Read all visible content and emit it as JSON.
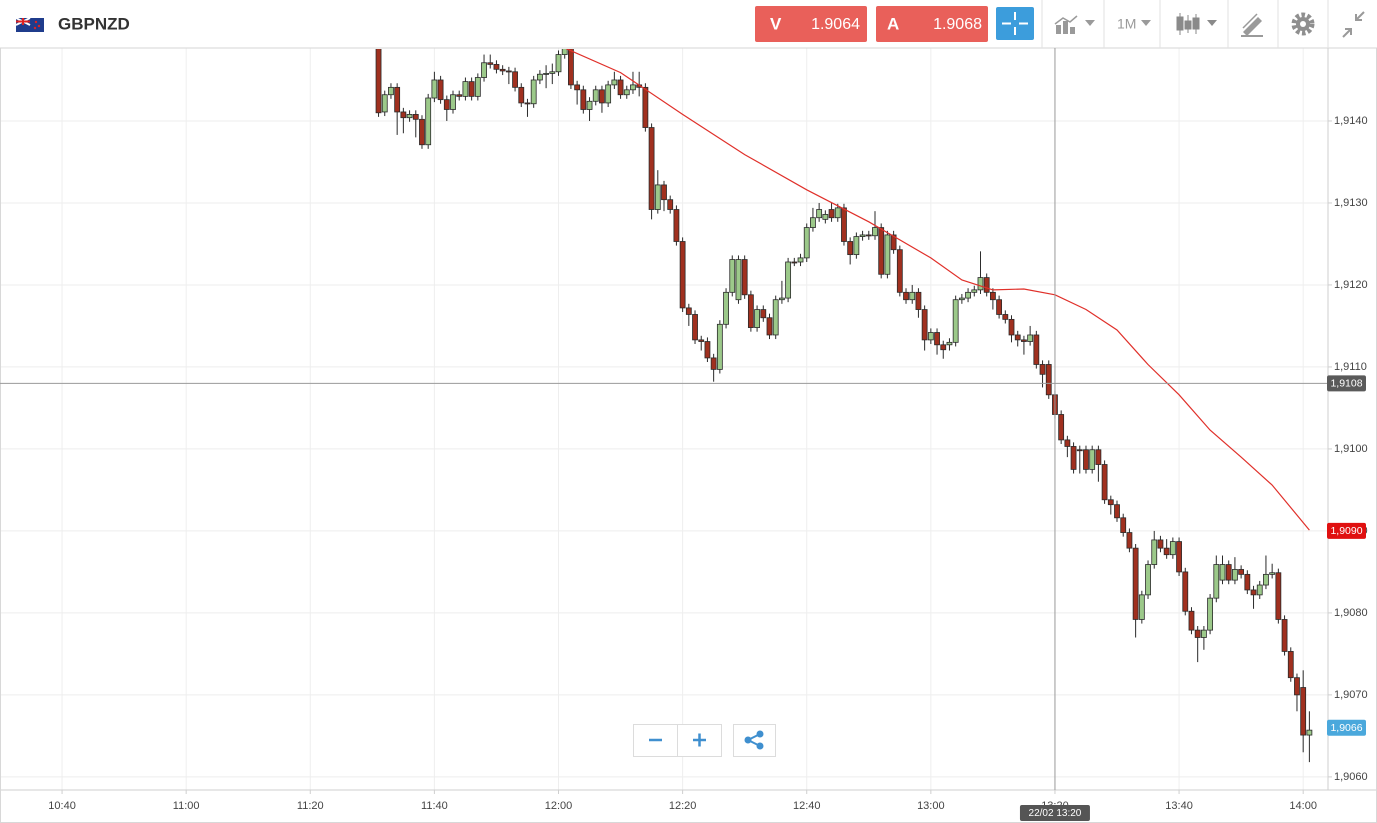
{
  "header": {
    "symbol": "GBPNZD",
    "sell": {
      "label": "V",
      "price": 1.9064
    },
    "buy": {
      "label": "A",
      "price": 1.9068
    },
    "timeframe": "1M"
  },
  "chart_data": {
    "type": "candlestick",
    "x": [
      "11:31",
      "11:32",
      "11:33",
      "11:34",
      "11:35",
      "11:36",
      "11:37",
      "11:38",
      "11:39",
      "11:40",
      "11:41",
      "11:42",
      "11:43",
      "11:44",
      "11:45",
      "11:46",
      "11:47",
      "11:48",
      "11:49",
      "11:50",
      "11:51",
      "11:52",
      "11:53",
      "11:54",
      "11:55",
      "11:56",
      "11:57",
      "11:58",
      "11:59",
      "12:00",
      "12:01",
      "12:02",
      "12:03",
      "12:04",
      "12:05",
      "12:06",
      "12:07",
      "12:08",
      "12:09",
      "12:10",
      "12:11",
      "12:12",
      "12:13",
      "12:14",
      "12:15",
      "12:16",
      "12:17",
      "12:18",
      "12:19",
      "12:20",
      "12:21",
      "12:22",
      "12:23",
      "12:24",
      "12:25",
      "12:26",
      "12:27",
      "12:28",
      "12:29",
      "12:30",
      "12:31",
      "12:32",
      "12:33",
      "12:34",
      "12:35",
      "12:36",
      "12:37",
      "12:38",
      "12:39",
      "12:40",
      "12:41",
      "12:42",
      "12:43",
      "12:44",
      "12:45",
      "12:46",
      "12:47",
      "12:48",
      "12:49",
      "12:50",
      "12:51",
      "12:52",
      "12:53",
      "12:54",
      "12:55",
      "12:56",
      "12:57",
      "12:58",
      "12:59",
      "13:00",
      "13:01",
      "13:02",
      "13:03",
      "13:04",
      "13:05",
      "13:06",
      "13:07",
      "13:08",
      "13:09",
      "13:10",
      "13:11",
      "13:12",
      "13:13",
      "13:14",
      "13:15",
      "13:16",
      "13:17",
      "13:18",
      "13:19",
      "13:20",
      "13:21",
      "13:22",
      "13:23",
      "13:24",
      "13:25",
      "13:26",
      "13:27",
      "13:28",
      "13:29",
      "13:30",
      "13:31",
      "13:32",
      "13:33",
      "13:34",
      "13:35",
      "13:36",
      "13:37",
      "13:38",
      "13:39",
      "13:40",
      "13:41",
      "13:42",
      "13:43",
      "13:44",
      "13:45",
      "13:46",
      "13:47",
      "13:48",
      "13:49",
      "13:50",
      "13:51",
      "13:52",
      "13:53",
      "13:54",
      "13:55",
      "13:56",
      "13:57",
      "13:58",
      "13:59",
      "14:00",
      "14:01"
    ],
    "open": [
      1.91489,
      1.91411,
      1.91432,
      1.91441,
      1.91411,
      1.91404,
      1.91408,
      1.91402,
      1.91371,
      1.91428,
      1.9145,
      1.91426,
      1.91414,
      1.91432,
      1.9143,
      1.91448,
      1.9143,
      1.91453,
      1.91471,
      1.91469,
      1.91463,
      1.91461,
      1.9146,
      1.91441,
      1.91422,
      1.91421,
      1.9145,
      1.91457,
      1.91458,
      1.9146,
      1.91481,
      1.91489,
      1.91444,
      1.91438,
      1.91414,
      1.91424,
      1.91438,
      1.91422,
      1.91444,
      1.9145,
      1.91432,
      1.91438,
      1.91444,
      1.91441,
      1.91392,
      1.91292,
      1.91322,
      1.91304,
      1.91292,
      1.91253,
      1.91172,
      1.91164,
      1.91133,
      1.91131,
      1.91111,
      1.91097,
      1.91152,
      1.91191,
      1.91182,
      1.91231,
      1.91188,
      1.91148,
      1.9117,
      1.9116,
      1.91139,
      1.91182,
      1.91184,
      1.91228,
      1.91228,
      1.91233,
      1.9127,
      1.91282,
      1.9128,
      1.91292,
      1.91282,
      1.91294,
      1.91253,
      1.91237,
      1.91259,
      1.91261,
      1.9126,
      1.9127,
      1.91213,
      1.91261,
      1.91243,
      1.91191,
      1.91182,
      1.91191,
      1.9117,
      1.91133,
      1.91142,
      1.91127,
      1.91127,
      1.9113,
      1.91182,
      1.91184,
      1.91191,
      1.91194,
      1.91209,
      1.91191,
      1.91182,
      1.91164,
      1.91158,
      1.91139,
      1.91133,
      1.91131,
      1.91139,
      1.91103,
      1.91103,
      1.91066,
      1.91042,
      1.91011,
      1.91003,
      1.90999,
      1.90999,
      1.90975,
      1.90999,
      1.90981,
      1.90938,
      1.90932,
      1.90916,
      1.90898,
      1.90879,
      1.90792,
      1.90822,
      1.90859,
      1.90889,
      1.90879,
      1.90871,
      1.90887,
      1.9085,
      1.90802,
      1.90779,
      1.9077,
      1.90779,
      1.90818,
      1.9084,
      1.90859,
      1.9084,
      1.90853,
      1.90847,
      1.90828,
      1.90822,
      1.90834,
      1.90847,
      1.90849,
      1.90792,
      1.90753,
      1.90721,
      1.90709,
      1.90651
    ],
    "high": [
      1.91494,
      1.91437,
      1.91446,
      1.91446,
      1.91416,
      1.91413,
      1.91413,
      1.91407,
      1.91433,
      1.9146,
      1.91455,
      1.91431,
      1.91437,
      1.91437,
      1.91453,
      1.91453,
      1.91458,
      1.91481,
      1.91481,
      1.91474,
      1.91468,
      1.91466,
      1.91465,
      1.91446,
      1.91427,
      1.91455,
      1.91462,
      1.91468,
      1.9147,
      1.91486,
      1.91494,
      1.91494,
      1.91449,
      1.91443,
      1.91429,
      1.91443,
      1.91443,
      1.91449,
      1.9146,
      1.91455,
      1.91443,
      1.9146,
      1.9146,
      1.91446,
      1.91397,
      1.9134,
      1.91327,
      1.91309,
      1.91297,
      1.91258,
      1.91177,
      1.91169,
      1.91138,
      1.91136,
      1.91116,
      1.91157,
      1.91196,
      1.91236,
      1.91236,
      1.91236,
      1.91193,
      1.91175,
      1.91175,
      1.91165,
      1.91187,
      1.91205,
      1.91233,
      1.91233,
      1.91238,
      1.91275,
      1.91294,
      1.913,
      1.91291,
      1.913,
      1.91299,
      1.91299,
      1.91258,
      1.91264,
      1.91266,
      1.91266,
      1.9129,
      1.91275,
      1.91266,
      1.91266,
      1.91248,
      1.91196,
      1.912,
      1.91196,
      1.91175,
      1.91147,
      1.91147,
      1.91132,
      1.91135,
      1.91187,
      1.91189,
      1.91196,
      1.91199,
      1.91241,
      1.91214,
      1.91196,
      1.91187,
      1.91169,
      1.91163,
      1.91144,
      1.91138,
      1.9115,
      1.91144,
      1.91108,
      1.91108,
      1.91071,
      1.91047,
      1.91016,
      1.91008,
      1.91004,
      1.91004,
      1.91004,
      1.91004,
      1.90986,
      1.90943,
      1.90937,
      1.90921,
      1.90903,
      1.90884,
      1.90827,
      1.90864,
      1.909,
      1.90894,
      1.9089,
      1.90892,
      1.90892,
      1.90855,
      1.90807,
      1.90784,
      1.90784,
      1.90823,
      1.9087,
      1.9087,
      1.90864,
      1.90868,
      1.90858,
      1.90852,
      1.90833,
      1.90839,
      1.9087,
      1.9086,
      1.90854,
      1.90797,
      1.90758,
      1.90726,
      1.9073,
      1.9068
    ],
    "low": [
      1.91405,
      1.91406,
      1.91427,
      1.91383,
      1.91385,
      1.91399,
      1.9138,
      1.91366,
      1.91366,
      1.91423,
      1.91421,
      1.914,
      1.91409,
      1.91425,
      1.91425,
      1.91425,
      1.91425,
      1.91448,
      1.91464,
      1.91458,
      1.91456,
      1.91445,
      1.91436,
      1.91417,
      1.91405,
      1.91416,
      1.91445,
      1.9144,
      1.91445,
      1.91455,
      1.91476,
      1.91439,
      1.9142,
      1.91409,
      1.914,
      1.91419,
      1.9141,
      1.91417,
      1.91439,
      1.91427,
      1.91427,
      1.91433,
      1.9143,
      1.91387,
      1.9128,
      1.91287,
      1.9129,
      1.91287,
      1.91248,
      1.91167,
      1.9115,
      1.91128,
      1.9112,
      1.91106,
      1.91082,
      1.91092,
      1.91147,
      1.91186,
      1.91177,
      1.91183,
      1.91143,
      1.91143,
      1.91155,
      1.91134,
      1.91134,
      1.91177,
      1.91179,
      1.91223,
      1.91223,
      1.91228,
      1.91265,
      1.91277,
      1.91275,
      1.91277,
      1.91277,
      1.91248,
      1.91225,
      1.91232,
      1.91254,
      1.91255,
      1.91255,
      1.91208,
      1.91208,
      1.91238,
      1.91186,
      1.91177,
      1.91177,
      1.9116,
      1.9112,
      1.91128,
      1.91115,
      1.9111,
      1.9112,
      1.91125,
      1.91177,
      1.91179,
      1.91186,
      1.91189,
      1.91186,
      1.9117,
      1.91159,
      1.91153,
      1.9113,
      1.91125,
      1.91115,
      1.91126,
      1.91098,
      1.91075,
      1.91061,
      1.91037,
      1.91006,
      1.9099,
      1.9097,
      1.9097,
      1.9097,
      1.9097,
      1.9096,
      1.90933,
      1.9092,
      1.90911,
      1.90893,
      1.90874,
      1.9077,
      1.90787,
      1.90817,
      1.90854,
      1.90874,
      1.90866,
      1.90866,
      1.90845,
      1.90797,
      1.90774,
      1.9074,
      1.90755,
      1.90774,
      1.90813,
      1.90835,
      1.90835,
      1.90835,
      1.90842,
      1.90823,
      1.90805,
      1.90817,
      1.90829,
      1.90842,
      1.90787,
      1.90748,
      1.90716,
      1.9068,
      1.9063,
      1.90618
    ],
    "close": [
      1.9141,
      1.91432,
      1.91441,
      1.91411,
      1.91404,
      1.91408,
      1.91402,
      1.91371,
      1.91428,
      1.9145,
      1.91426,
      1.91414,
      1.91432,
      1.9143,
      1.91448,
      1.9143,
      1.91453,
      1.91471,
      1.91469,
      1.91463,
      1.91461,
      1.9146,
      1.91441,
      1.91422,
      1.91421,
      1.9145,
      1.91457,
      1.91458,
      1.9146,
      1.91481,
      1.91489,
      1.91444,
      1.91438,
      1.91414,
      1.91424,
      1.91438,
      1.91422,
      1.91444,
      1.9145,
      1.91432,
      1.91438,
      1.91444,
      1.91441,
      1.91392,
      1.91292,
      1.91322,
      1.91304,
      1.91292,
      1.91253,
      1.91172,
      1.91164,
      1.91133,
      1.91131,
      1.91111,
      1.91097,
      1.91152,
      1.91191,
      1.91231,
      1.91231,
      1.91188,
      1.91148,
      1.9117,
      1.9116,
      1.91139,
      1.91182,
      1.91184,
      1.91228,
      1.91228,
      1.91233,
      1.9127,
      1.91282,
      1.91292,
      1.91286,
      1.91282,
      1.91294,
      1.91253,
      1.91237,
      1.91259,
      1.91261,
      1.9126,
      1.9127,
      1.91213,
      1.91261,
      1.91243,
      1.91191,
      1.91182,
      1.91191,
      1.9117,
      1.91133,
      1.91142,
      1.91127,
      1.91121,
      1.9113,
      1.91182,
      1.91184,
      1.91191,
      1.91194,
      1.91209,
      1.91191,
      1.91182,
      1.91164,
      1.91158,
      1.91139,
      1.91133,
      1.91131,
      1.91139,
      1.91103,
      1.91091,
      1.91066,
      1.91042,
      1.91011,
      1.91003,
      1.90975,
      1.90999,
      1.90975,
      1.90999,
      1.90981,
      1.90938,
      1.90932,
      1.90916,
      1.90898,
      1.90879,
      1.90792,
      1.90822,
      1.90859,
      1.90889,
      1.90879,
      1.90871,
      1.90887,
      1.9085,
      1.90802,
      1.90779,
      1.9077,
      1.90779,
      1.90818,
      1.90859,
      1.90859,
      1.9084,
      1.90853,
      1.90847,
      1.90828,
      1.90822,
      1.90834,
      1.90847,
      1.90849,
      1.90792,
      1.90753,
      1.90721,
      1.907,
      1.90651,
      1.90657
    ],
    "up_color": "#9cc98a",
    "down_color": "#a0301f",
    "outline_color": "#2a2a2a",
    "ma": {
      "color": "#e0302a",
      "x": [
        "12:01",
        "12:10",
        "12:20",
        "12:30",
        "12:40",
        "12:50",
        "13:00",
        "13:05",
        "13:10",
        "13:15",
        "13:20",
        "13:25",
        "13:30",
        "13:35",
        "13:40",
        "13:45",
        "13:50",
        "13:55",
        "14:01"
      ],
      "values": [
        1.91489,
        1.91459,
        1.91408,
        1.91359,
        1.91316,
        1.91277,
        1.91233,
        1.91206,
        1.91194,
        1.91195,
        1.91188,
        1.9117,
        1.91145,
        1.91103,
        1.91066,
        1.91023,
        1.9099,
        1.90956,
        1.90901
      ]
    },
    "xlim": [
      "10:30",
      "14:04"
    ],
    "xticks": [
      "10:40",
      "11:00",
      "11:20",
      "11:40",
      "12:00",
      "12:20",
      "12:40",
      "13:00",
      "13:20",
      "13:40",
      "14:00"
    ],
    "ylim": [
      1.90584,
      1.91489
    ],
    "yticks": [
      {
        "value": 1.906,
        "label": "1,9060"
      },
      {
        "value": 1.907,
        "label": "1,9070"
      },
      {
        "value": 1.908,
        "label": "1,9080"
      },
      {
        "value": 1.909,
        "label": "1,9090"
      },
      {
        "value": 1.91,
        "label": "1,9100"
      },
      {
        "value": 1.911,
        "label": "1,9110"
      },
      {
        "value": 1.912,
        "label": "1,9120"
      },
      {
        "value": 1.913,
        "label": "1,9130"
      },
      {
        "value": 1.914,
        "label": "1,9140"
      }
    ],
    "grid": true,
    "price_tags": [
      {
        "value": 1.9108,
        "label": "1,9108",
        "color": "#5a5a5a"
      },
      {
        "value": 1.909,
        "label": "1,9090",
        "color": "#e01010"
      },
      {
        "value": 1.9066,
        "label": "1,9066",
        "color": "#4aa8dc"
      }
    ],
    "crosshair": {
      "x": "13:20",
      "y": 1.9108,
      "label": "22/02 13:20"
    }
  }
}
